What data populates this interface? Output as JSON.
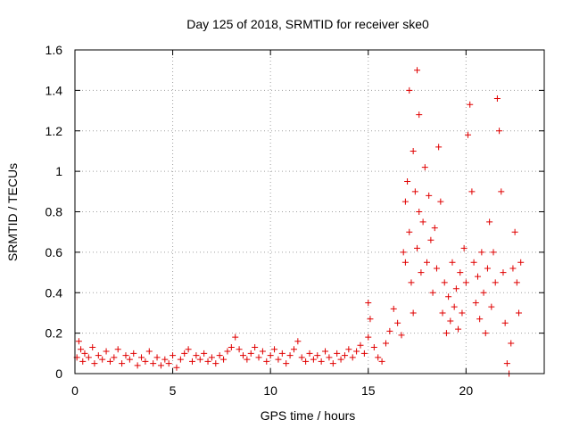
{
  "chart_data": {
    "type": "scatter",
    "title": "Day 125 of 2018, SRMTID for receiver ske0",
    "xlabel": "GPS time / hours",
    "ylabel": "SRMTID / TECUs",
    "xlim": [
      0,
      24
    ],
    "ylim": [
      0,
      1.6
    ],
    "x_ticks": [
      "0",
      "5",
      "10",
      "15",
      "20"
    ],
    "x_tick_values": [
      0,
      5,
      10,
      15,
      20
    ],
    "y_ticks": [
      "0",
      "0.2",
      "0.4",
      "0.6",
      "0.8",
      "1",
      "1.2",
      "1.4",
      "1.6"
    ],
    "y_tick_values": [
      0,
      0.2,
      0.4,
      0.6,
      0.8,
      1.0,
      1.2,
      1.4,
      1.6
    ],
    "grid": true,
    "marker": "plus",
    "color": "#e00000",
    "series": [
      {
        "name": "SRMTID",
        "points": [
          [
            0.1,
            0.08
          ],
          [
            0.2,
            0.16
          ],
          [
            0.3,
            0.12
          ],
          [
            0.4,
            0.06
          ],
          [
            0.5,
            0.1
          ],
          [
            0.7,
            0.08
          ],
          [
            0.9,
            0.13
          ],
          [
            1.0,
            0.05
          ],
          [
            1.2,
            0.09
          ],
          [
            1.4,
            0.07
          ],
          [
            1.6,
            0.11
          ],
          [
            1.8,
            0.06
          ],
          [
            2.0,
            0.08
          ],
          [
            2.2,
            0.12
          ],
          [
            2.4,
            0.05
          ],
          [
            2.6,
            0.09
          ],
          [
            2.8,
            0.07
          ],
          [
            3.0,
            0.1
          ],
          [
            3.2,
            0.04
          ],
          [
            3.4,
            0.08
          ],
          [
            3.6,
            0.06
          ],
          [
            3.8,
            0.11
          ],
          [
            4.0,
            0.05
          ],
          [
            4.2,
            0.08
          ],
          [
            4.4,
            0.04
          ],
          [
            4.6,
            0.07
          ],
          [
            4.8,
            0.05
          ],
          [
            5.0,
            0.09
          ],
          [
            5.2,
            0.03
          ],
          [
            5.4,
            0.07
          ],
          [
            5.6,
            0.1
          ],
          [
            5.8,
            0.12
          ],
          [
            6.0,
            0.06
          ],
          [
            6.2,
            0.09
          ],
          [
            6.4,
            0.07
          ],
          [
            6.6,
            0.1
          ],
          [
            6.8,
            0.06
          ],
          [
            7.0,
            0.08
          ],
          [
            7.2,
            0.05
          ],
          [
            7.4,
            0.09
          ],
          [
            7.6,
            0.07
          ],
          [
            7.8,
            0.11
          ],
          [
            8.0,
            0.13
          ],
          [
            8.2,
            0.18
          ],
          [
            8.4,
            0.12
          ],
          [
            8.6,
            0.09
          ],
          [
            8.8,
            0.07
          ],
          [
            9.0,
            0.1
          ],
          [
            9.2,
            0.13
          ],
          [
            9.4,
            0.08
          ],
          [
            9.6,
            0.11
          ],
          [
            9.8,
            0.06
          ],
          [
            10.0,
            0.09
          ],
          [
            10.2,
            0.12
          ],
          [
            10.4,
            0.07
          ],
          [
            10.6,
            0.1
          ],
          [
            10.8,
            0.05
          ],
          [
            11.0,
            0.09
          ],
          [
            11.2,
            0.12
          ],
          [
            11.4,
            0.16
          ],
          [
            11.6,
            0.08
          ],
          [
            11.8,
            0.06
          ],
          [
            12.0,
            0.1
          ],
          [
            12.2,
            0.07
          ],
          [
            12.4,
            0.09
          ],
          [
            12.6,
            0.06
          ],
          [
            12.8,
            0.11
          ],
          [
            13.0,
            0.08
          ],
          [
            13.2,
            0.05
          ],
          [
            13.4,
            0.1
          ],
          [
            13.6,
            0.07
          ],
          [
            13.8,
            0.09
          ],
          [
            14.0,
            0.12
          ],
          [
            14.2,
            0.08
          ],
          [
            14.4,
            0.11
          ],
          [
            14.6,
            0.14
          ],
          [
            14.8,
            0.1
          ],
          [
            15.0,
            0.18
          ],
          [
            15.0,
            0.35
          ],
          [
            15.1,
            0.27
          ],
          [
            15.3,
            0.13
          ],
          [
            15.5,
            0.08
          ],
          [
            15.7,
            0.06
          ],
          [
            15.9,
            0.15
          ],
          [
            16.1,
            0.21
          ],
          [
            16.3,
            0.32
          ],
          [
            16.5,
            0.25
          ],
          [
            16.7,
            0.19
          ],
          [
            16.8,
            0.6
          ],
          [
            16.9,
            0.85
          ],
          [
            16.9,
            0.55
          ],
          [
            17.0,
            0.95
          ],
          [
            17.1,
            1.4
          ],
          [
            17.1,
            0.7
          ],
          [
            17.2,
            0.45
          ],
          [
            17.3,
            1.1
          ],
          [
            17.3,
            0.3
          ],
          [
            17.4,
            0.9
          ],
          [
            17.5,
            1.5
          ],
          [
            17.5,
            0.62
          ],
          [
            17.6,
            1.28
          ],
          [
            17.6,
            0.8
          ],
          [
            17.7,
            0.5
          ],
          [
            17.8,
            0.75
          ],
          [
            17.9,
            1.02
          ],
          [
            18.0,
            0.55
          ],
          [
            18.1,
            0.88
          ],
          [
            18.2,
            0.66
          ],
          [
            18.3,
            0.4
          ],
          [
            18.4,
            0.72
          ],
          [
            18.5,
            0.52
          ],
          [
            18.6,
            1.12
          ],
          [
            18.7,
            0.85
          ],
          [
            18.8,
            0.3
          ],
          [
            18.9,
            0.45
          ],
          [
            19.0,
            0.2
          ],
          [
            19.1,
            0.38
          ],
          [
            19.2,
            0.26
          ],
          [
            19.3,
            0.55
          ],
          [
            19.4,
            0.33
          ],
          [
            19.5,
            0.42
          ],
          [
            19.6,
            0.22
          ],
          [
            19.7,
            0.5
          ],
          [
            19.8,
            0.3
          ],
          [
            19.9,
            0.62
          ],
          [
            20.0,
            0.45
          ],
          [
            20.1,
            1.18
          ],
          [
            20.2,
            1.33
          ],
          [
            20.3,
            0.9
          ],
          [
            20.4,
            0.55
          ],
          [
            20.5,
            0.35
          ],
          [
            20.6,
            0.48
          ],
          [
            20.7,
            0.27
          ],
          [
            20.8,
            0.6
          ],
          [
            20.9,
            0.4
          ],
          [
            21.0,
            0.2
          ],
          [
            21.1,
            0.52
          ],
          [
            21.2,
            0.75
          ],
          [
            21.3,
            0.33
          ],
          [
            21.4,
            0.6
          ],
          [
            21.5,
            0.45
          ],
          [
            21.6,
            1.36
          ],
          [
            21.7,
            1.2
          ],
          [
            21.8,
            0.9
          ],
          [
            21.9,
            0.5
          ],
          [
            22.0,
            0.25
          ],
          [
            22.1,
            0.05
          ],
          [
            22.2,
            0.0
          ],
          [
            22.3,
            0.15
          ],
          [
            22.4,
            0.52
          ],
          [
            22.5,
            0.7
          ],
          [
            22.6,
            0.45
          ],
          [
            22.7,
            0.3
          ],
          [
            22.8,
            0.55
          ]
        ]
      }
    ]
  }
}
